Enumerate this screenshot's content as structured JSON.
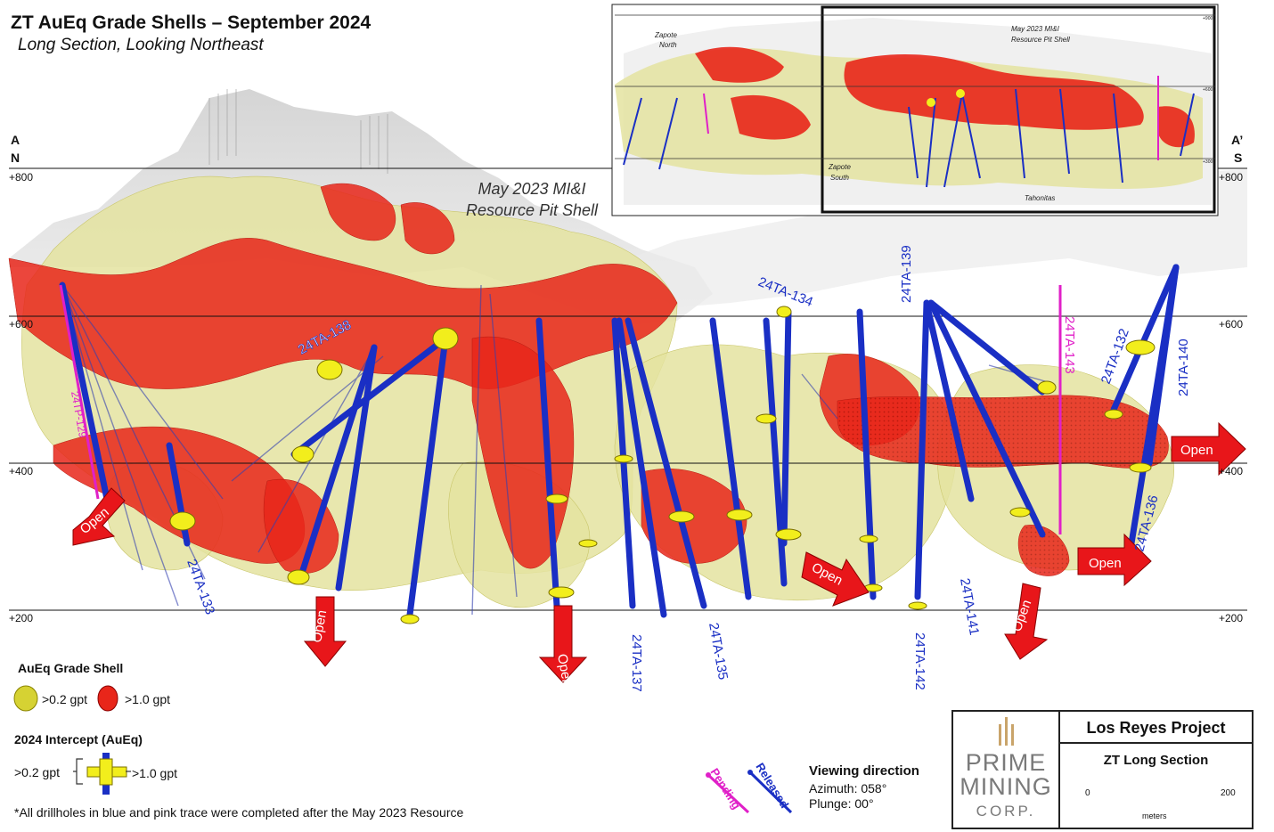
{
  "title": "ZT AuEq Grade Shells – September 2024",
  "subtitle": "Long Section, Looking Northeast",
  "section_ends": {
    "left_letter": "A",
    "left_dir": "N",
    "right_letter": "A’",
    "right_dir": "S"
  },
  "elevations": [
    "+800",
    "+600",
    "+400",
    "+200"
  ],
  "pit_shell_label": [
    "May 2023 MI&I",
    "Resource Pit Shell"
  ],
  "inset": {
    "labels": [
      "Zapote",
      "North",
      "May 2023 MI&I",
      "Resource Pit Shell",
      "Zapote",
      "South",
      "Tahonitas"
    ],
    "elevations": [
      "+900",
      "+600",
      "+300"
    ]
  },
  "drillholes": [
    "24TA-138",
    "24TA-134",
    "24TA-139",
    "24TA-143",
    "24TA-132",
    "24TA-140",
    "24TA-136",
    "24TA-133",
    "24TA-137",
    "24TA-135",
    "24TA-142",
    "24TA-141",
    "24TP-129"
  ],
  "open_label": "Open",
  "legend": {
    "grade_shell_title": "AuEq Grade Shell",
    "low_grade": ">0.2 gpt",
    "high_grade": ">1.0 gpt",
    "intercept_title": "2024 Intercept (AuEq)",
    "intercept_low": ">0.2 gpt",
    "intercept_high": ">1.0 gpt"
  },
  "status": {
    "pending": "Pending",
    "released": "Released"
  },
  "viewing": {
    "title": "Viewing direction",
    "azimuth": "Azimuth: 058°",
    "plunge": "Plunge: 00°"
  },
  "footnote": "*All drillholes in blue and pink trace were completed after the May 2023 Resource",
  "titleblock": {
    "logo_line1": "PRIME",
    "logo_line2": "MINING",
    "logo_line3": "CORP.",
    "project": "Los Reyes Project",
    "section": "ZT Long Section",
    "scale_min": "0",
    "scale_max": "200",
    "scale_unit": "meters"
  },
  "colors": {
    "low_shell": "#e4e3a0",
    "high_shell": "#e8261a",
    "hole_released": "#1a2fc4",
    "hole_pending": "#e020c8",
    "arrow": "#e8161a"
  }
}
